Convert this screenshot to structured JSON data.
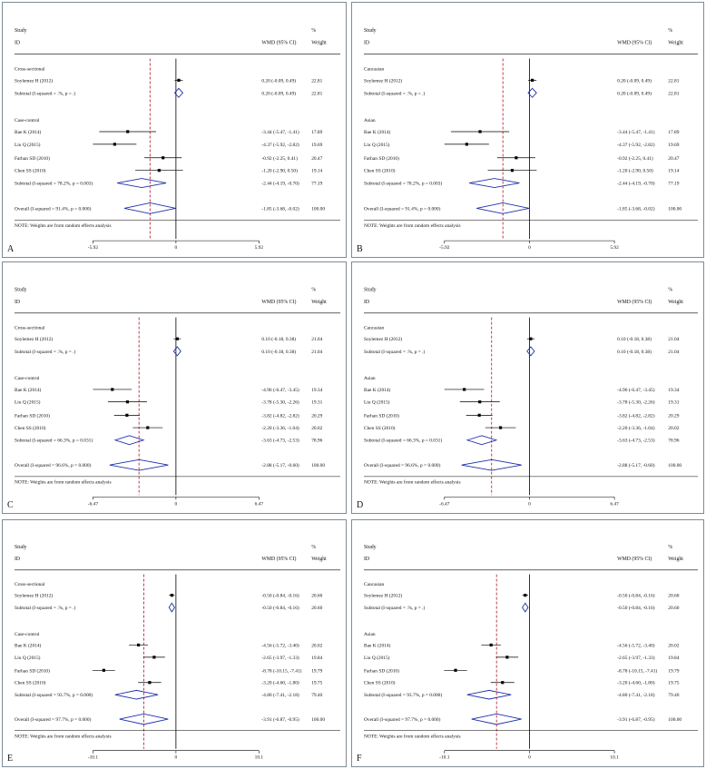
{
  "header": {
    "study": "Study",
    "id": "ID",
    "wmd": "WMD (95% CI)",
    "pct": "%",
    "weight": "Weight"
  },
  "note": "NOTE: Weights are from random effects analysis",
  "colors": {
    "border": "#7d8c96",
    "diamond": "#1f2fa8",
    "refline": "#b01020",
    "mark": "#000000"
  },
  "chart_data": [
    {
      "type": "forest",
      "label": "A",
      "scale": 5.92,
      "axis_ticks": [
        "-5.92",
        "0",
        "5.92"
      ],
      "overall_est": -1.85,
      "groups": [
        {
          "name": "Cross-sectional",
          "studies": [
            {
              "study": "Soylemez H (2012)",
              "est": 0.2,
              "lo": -0.09,
              "hi": 0.49,
              "ci": "0.20 (-0.09, 0.49)",
              "weight": "22.81"
            }
          ],
          "subtotal": {
            "label": "Subtotal  (I-squared = .%, p = .)",
            "est": 0.2,
            "lo": -0.09,
            "hi": 0.49,
            "ci": "0.20 (-0.09, 0.49)",
            "weight": "22.81"
          }
        },
        {
          "name": "Case-control",
          "studies": [
            {
              "study": "Bae K (2014)",
              "est": -3.44,
              "lo": -5.47,
              "hi": -1.41,
              "ci": "-3.44 (-5.47, -1.41)",
              "weight": "17.89"
            },
            {
              "study": "Liu Q (2015)",
              "est": -4.37,
              "lo": -5.92,
              "hi": -2.82,
              "ci": "-4.37 (-5.92, -2.82)",
              "weight": "19.69"
            },
            {
              "study": "Farhan SD (2010)",
              "est": -0.92,
              "lo": -2.25,
              "hi": 0.41,
              "ci": "-0.92 (-2.25, 0.41)",
              "weight": "20.47"
            },
            {
              "study": "Chen SS (2010)",
              "est": -1.2,
              "lo": -2.9,
              "hi": 0.5,
              "ci": "-1.20 (-2.90, 0.50)",
              "weight": "19.14"
            }
          ],
          "subtotal": {
            "label": "Subtotal  (I-squared = 78.2%, p = 0.003)",
            "est": -2.44,
            "lo": -4.19,
            "hi": -0.7,
            "ci": "-2.44 (-4.19, -0.70)",
            "weight": "77.19"
          }
        }
      ],
      "overall": {
        "label": "Overall  (I-squared = 91.4%, p = 0.000)",
        "est": -1.85,
        "lo": -3.68,
        "hi": -0.02,
        "ci": "-1.85 (-3.68, -0.02)",
        "weight": "100.00"
      }
    },
    {
      "type": "forest",
      "label": "B",
      "scale": 5.92,
      "axis_ticks": [
        "-5.92",
        "0",
        "5.92"
      ],
      "overall_est": -1.85,
      "groups": [
        {
          "name": "Caucasian",
          "studies": [
            {
              "study": "Soylemez H (2012)",
              "est": 0.2,
              "lo": -0.09,
              "hi": 0.49,
              "ci": "0.20 (-0.09, 0.49)",
              "weight": "22.81"
            }
          ],
          "subtotal": {
            "label": "Subtotal  (I-squared = .%, p = .)",
            "est": 0.2,
            "lo": -0.09,
            "hi": 0.49,
            "ci": "0.20 (-0.09, 0.49)",
            "weight": "22.81"
          }
        },
        {
          "name": "Asian",
          "studies": [
            {
              "study": "Bae K (2014)",
              "est": -3.44,
              "lo": -5.47,
              "hi": -1.41,
              "ci": "-3.44 (-5.47, -1.41)",
              "weight": "17.89"
            },
            {
              "study": "Liu Q (2015)",
              "est": -4.37,
              "lo": -5.92,
              "hi": -2.82,
              "ci": "-4.37 (-5.92, -2.82)",
              "weight": "19.69"
            },
            {
              "study": "Farhan SD (2010)",
              "est": -0.92,
              "lo": -2.25,
              "hi": 0.41,
              "ci": "-0.92 (-2.25, 0.41)",
              "weight": "20.47"
            },
            {
              "study": "Chen SS (2010)",
              "est": -1.2,
              "lo": -2.9,
              "hi": 0.5,
              "ci": "-1.20 (-2.90, 0.50)",
              "weight": "19.14"
            }
          ],
          "subtotal": {
            "label": "Subtotal  (I-squared = 78.2%, p = 0.003)",
            "est": -2.44,
            "lo": -4.19,
            "hi": -0.7,
            "ci": "-2.44 (-4.19, -0.70)",
            "weight": "77.19"
          }
        }
      ],
      "overall": {
        "label": "Overall  (I-squared = 91.4%, p = 0.000)",
        "est": -1.85,
        "lo": -3.68,
        "hi": -0.02,
        "ci": "-1.85 (-3.68, -0.02)",
        "weight": "100.00"
      }
    },
    {
      "type": "forest",
      "label": "C",
      "scale": 6.47,
      "axis_ticks": [
        "-6.47",
        "0",
        "6.47"
      ],
      "overall_est": -2.88,
      "groups": [
        {
          "name": "Cross-sectional",
          "studies": [
            {
              "study": "Soylemez H (2012)",
              "est": 0.1,
              "lo": -0.18,
              "hi": 0.38,
              "ci": "0.10 (-0.18, 0.38)",
              "weight": "21.04"
            }
          ],
          "subtotal": {
            "label": "Subtotal  (I-squared = .%, p = .)",
            "est": 0.1,
            "lo": -0.18,
            "hi": 0.38,
            "ci": "0.10 (-0.18, 0.38)",
            "weight": "21.04"
          }
        },
        {
          "name": "Case-control",
          "studies": [
            {
              "study": "Bae K (2014)",
              "est": -4.96,
              "lo": -6.47,
              "hi": -3.45,
              "ci": "-4.96 (-6.47, -3.45)",
              "weight": "19.34"
            },
            {
              "study": "Liu Q (2015)",
              "est": -3.78,
              "lo": -5.3,
              "hi": -2.26,
              "ci": "-3.78 (-5.30, -2.26)",
              "weight": "19.31"
            },
            {
              "study": "Farhan SD (2010)",
              "est": -3.82,
              "lo": -4.82,
              "hi": -2.82,
              "ci": "-3.82 (-4.82, -2.82)",
              "weight": "20.29"
            },
            {
              "study": "Chen SS (2010)",
              "est": -2.2,
              "lo": -3.36,
              "hi": -1.04,
              "ci": "-2.20 (-3.36, -1.04)",
              "weight": "20.02"
            }
          ],
          "subtotal": {
            "label": "Subtotal  (I-squared = 66.3%, p = 0.031)",
            "est": -3.63,
            "lo": -4.73,
            "hi": -2.53,
            "ci": "-3.63 (-4.73, -2.53)",
            "weight": "78.96"
          }
        }
      ],
      "overall": {
        "label": "Overall  (I-squared = 96.6%, p = 0.000)",
        "est": -2.88,
        "lo": -5.17,
        "hi": -0.6,
        "ci": "-2.88 (-5.17, -0.60)",
        "weight": "100.00"
      }
    },
    {
      "type": "forest",
      "label": "D",
      "scale": 6.47,
      "axis_ticks": [
        "-6.47",
        "0",
        "6.47"
      ],
      "overall_est": -2.88,
      "groups": [
        {
          "name": "Caucasian",
          "studies": [
            {
              "study": "Soylemez H (2012)",
              "est": 0.1,
              "lo": -0.18,
              "hi": 0.38,
              "ci": "0.10 (-0.18, 0.38)",
              "weight": "21.04"
            }
          ],
          "subtotal": {
            "label": "Subtotal  (I-squared = .%, p = .)",
            "est": 0.1,
            "lo": -0.18,
            "hi": 0.38,
            "ci": "0.10 (-0.18, 0.38)",
            "weight": "21.04"
          }
        },
        {
          "name": "Asian",
          "studies": [
            {
              "study": "Bae K (2014)",
              "est": -4.96,
              "lo": -6.47,
              "hi": -3.45,
              "ci": "-4.96 (-6.47, -3.45)",
              "weight": "19.34"
            },
            {
              "study": "Liu Q (2015)",
              "est": -3.78,
              "lo": -5.3,
              "hi": -2.26,
              "ci": "-3.78 (-5.30, -2.26)",
              "weight": "19.31"
            },
            {
              "study": "Farhan SD (2010)",
              "est": -3.82,
              "lo": -4.82,
              "hi": -2.82,
              "ci": "-3.82 (-4.82, -2.82)",
              "weight": "20.29"
            },
            {
              "study": "Chen SS (2010)",
              "est": -2.2,
              "lo": -3.36,
              "hi": -1.04,
              "ci": "-2.20 (-3.36, -1.04)",
              "weight": "20.02"
            }
          ],
          "subtotal": {
            "label": "Subtotal  (I-squared = 66.3%, p = 0.031)",
            "est": -3.63,
            "lo": -4.73,
            "hi": -2.53,
            "ci": "-3.63 (-4.73, -2.53)",
            "weight": "78.96"
          }
        }
      ],
      "overall": {
        "label": "Overall  (I-squared = 96.6%, p = 0.000)",
        "est": -2.88,
        "lo": -5.17,
        "hi": -0.6,
        "ci": "-2.88 (-5.17, -0.60)",
        "weight": "100.00"
      }
    },
    {
      "type": "forest",
      "label": "E",
      "scale": 10.1,
      "axis_ticks": [
        "-10.1",
        "0",
        "10.1"
      ],
      "overall_est": -3.91,
      "groups": [
        {
          "name": "Cross-sectional",
          "studies": [
            {
              "study": "Soylemez H (2012)",
              "est": -0.5,
              "lo": -0.84,
              "hi": -0.16,
              "ci": "-0.50 (-0.84, -0.16)",
              "weight": "20.60"
            }
          ],
          "subtotal": {
            "label": "Subtotal  (I-squared = .%, p = .)",
            "est": -0.5,
            "lo": -0.84,
            "hi": -0.16,
            "ci": "-0.50 (-0.84, -0.16)",
            "weight": "20.60"
          }
        },
        {
          "name": "Case-control",
          "studies": [
            {
              "study": "Bae K (2014)",
              "est": -4.56,
              "lo": -5.72,
              "hi": -3.4,
              "ci": "-4.56 (-5.72, -3.40)",
              "weight": "20.02"
            },
            {
              "study": "Liu Q (2015)",
              "est": -2.65,
              "lo": -3.97,
              "hi": -1.33,
              "ci": "-2.65 (-3.97, -1.33)",
              "weight": "19.84"
            },
            {
              "study": "Farhan SD (2010)",
              "est": -8.78,
              "lo": -10.15,
              "hi": -7.41,
              "ci": "-8.78 (-10.15, -7.41)",
              "weight": "19.79"
            },
            {
              "study": "Chen SS (2010)",
              "est": -3.2,
              "lo": -4.6,
              "hi": -1.8,
              "ci": "-3.20 (-4.60, -1.80)",
              "weight": "19.75"
            }
          ],
          "subtotal": {
            "label": "Subtotal  (I-squared = 93.7%, p = 0.000)",
            "est": -4.8,
            "lo": -7.41,
            "hi": -2.18,
            "ci": "-4.80 (-7.41, -2.18)",
            "weight": "79.40"
          }
        }
      ],
      "overall": {
        "label": "Overall  (I-squared = 97.7%, p = 0.000)",
        "est": -3.91,
        "lo": -6.87,
        "hi": -0.95,
        "ci": "-3.91 (-6.87, -0.95)",
        "weight": "100.00"
      }
    },
    {
      "type": "forest",
      "label": "F",
      "scale": 10.1,
      "axis_ticks": [
        "-10.1",
        "0",
        "10.1"
      ],
      "overall_est": -3.91,
      "groups": [
        {
          "name": "Caucasian",
          "studies": [
            {
              "study": "Soylemez H (2012)",
              "est": -0.5,
              "lo": -0.84,
              "hi": -0.16,
              "ci": "-0.50 (-0.84, -0.16)",
              "weight": "20.60"
            }
          ],
          "subtotal": {
            "label": "Subtotal  (I-squared = .%, p = .)",
            "est": -0.5,
            "lo": -0.84,
            "hi": -0.16,
            "ci": "-0.50 (-0.84, -0.16)",
            "weight": "20.60"
          }
        },
        {
          "name": "Asian",
          "studies": [
            {
              "study": "Bae K (2014)",
              "est": -4.56,
              "lo": -5.72,
              "hi": -3.4,
              "ci": "-4.56 (-5.72, -3.40)",
              "weight": "20.02"
            },
            {
              "study": "Liu Q (2015)",
              "est": -2.65,
              "lo": -3.97,
              "hi": -1.33,
              "ci": "-2.65 (-3.97, -1.33)",
              "weight": "19.84"
            },
            {
              "study": "Farhan SD (2010)",
              "est": -8.78,
              "lo": -10.15,
              "hi": -7.41,
              "ci": "-8.78 (-10.15, -7.41)",
              "weight": "19.79"
            },
            {
              "study": "Chen SS (2010)",
              "est": -3.2,
              "lo": -4.6,
              "hi": -1.8,
              "ci": "-3.20 (-4.60, -1.80)",
              "weight": "19.75"
            }
          ],
          "subtotal": {
            "label": "Subtotal  (I-squared = 93.7%, p = 0.000)",
            "est": -4.8,
            "lo": -7.41,
            "hi": -2.18,
            "ci": "-4.80 (-7.41, -2.18)",
            "weight": "79.40"
          }
        }
      ],
      "overall": {
        "label": "Overall  (I-squared = 97.7%, p = 0.000)",
        "est": -3.91,
        "lo": -6.87,
        "hi": -0.95,
        "ci": "-3.91 (-6.87, -0.95)",
        "weight": "100.00"
      }
    }
  ]
}
